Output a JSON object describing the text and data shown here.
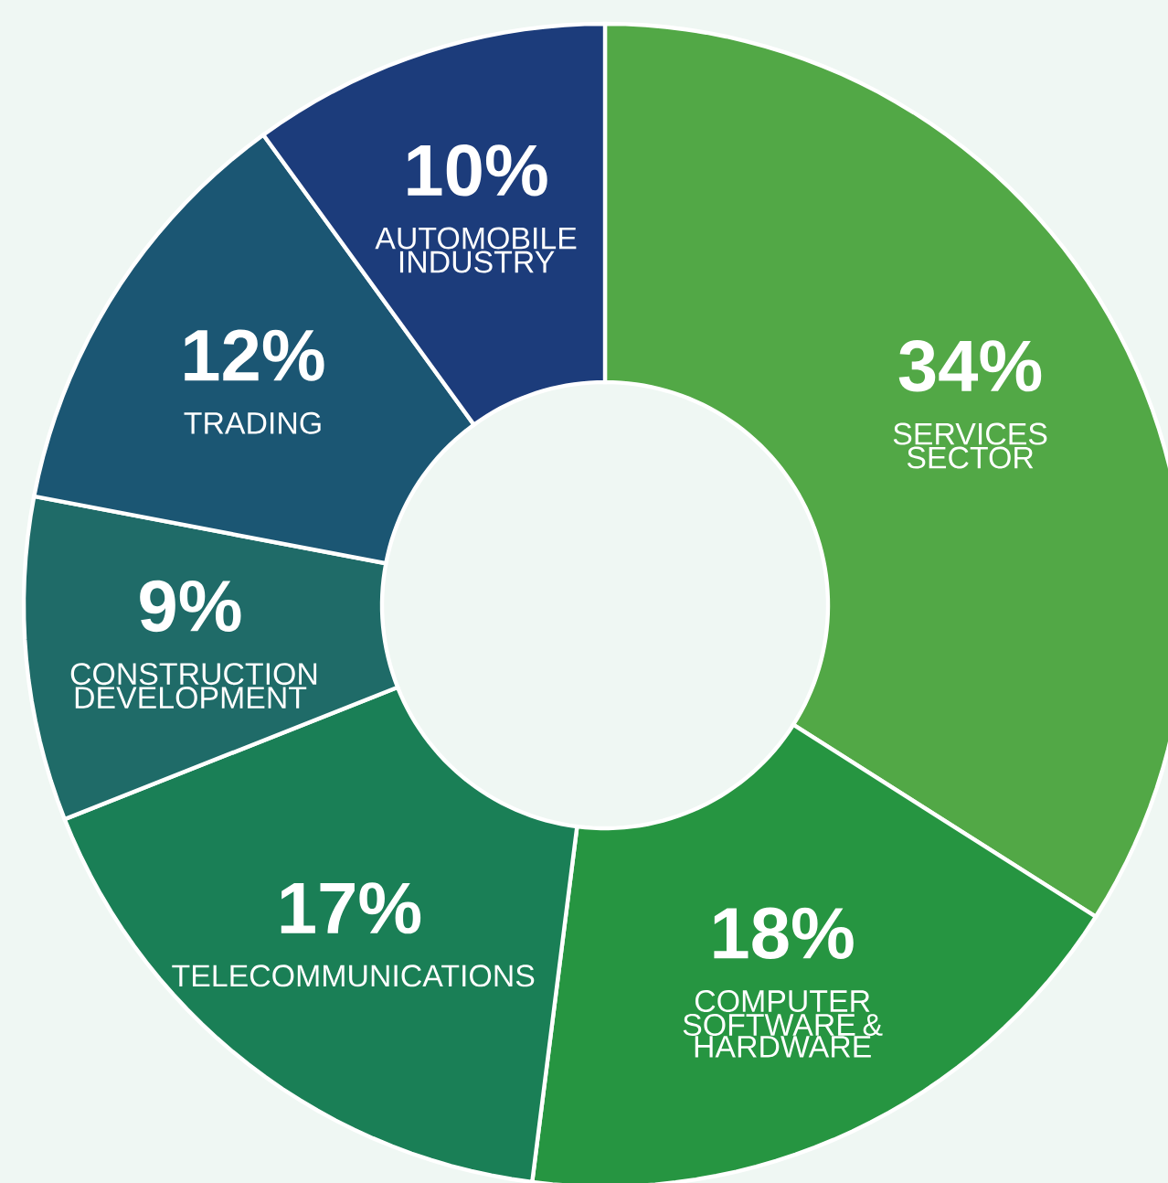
{
  "chart_data": {
    "type": "donut",
    "categories": [
      "SERVICES SECTOR",
      "COMPUTER SOFTWARE & HARDWARE",
      "TELECOMMUNICATIONS",
      "CONSTRUCTION DEVELOPMENT",
      "TRADING",
      "AUTOMOBILE INDUSTRY"
    ],
    "values": [
      34,
      18,
      17,
      9,
      12,
      10
    ],
    "value_labels": [
      "34%",
      "18%",
      "17%",
      "9%",
      "12%",
      "10%"
    ],
    "colors": [
      "#52a846",
      "#269541",
      "#1a7f56",
      "#1f6b68",
      "#1b5673",
      "#1c3c7b"
    ]
  }
}
